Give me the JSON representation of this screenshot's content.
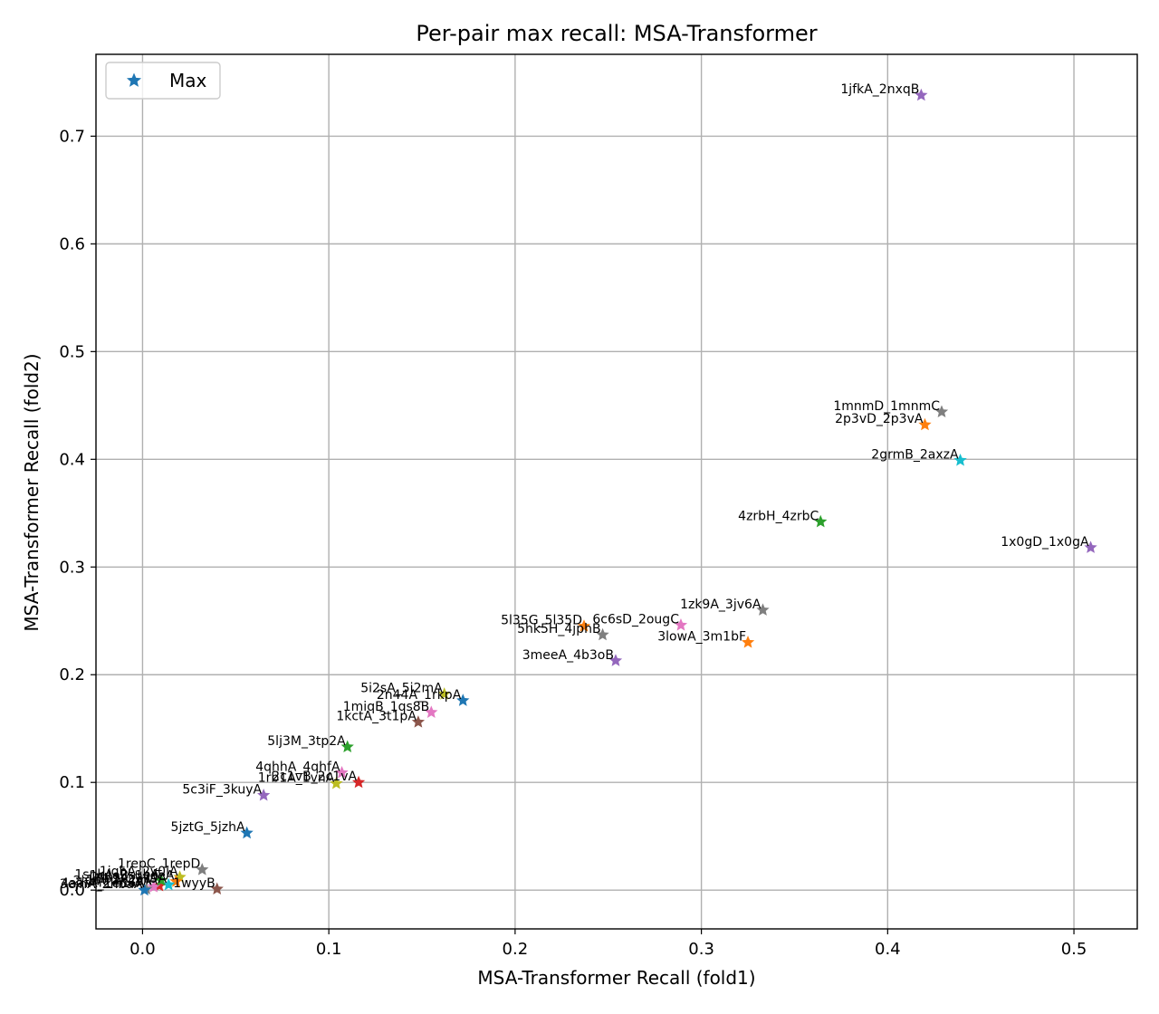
{
  "chart_data": {
    "type": "scatter",
    "title": "Per-pair max recall: MSA-Transformer",
    "xlabel": "MSA-Transformer Recall (fold1)",
    "ylabel": "MSA-Transformer Recall (fold2)",
    "xlim": [
      -0.025,
      0.534
    ],
    "ylim": [
      -0.036,
      0.776
    ],
    "xticks": [
      0.0,
      0.1,
      0.2,
      0.3,
      0.4,
      0.5
    ],
    "yticks": [
      0.0,
      0.1,
      0.2,
      0.3,
      0.4,
      0.5,
      0.6,
      0.7
    ],
    "grid": true,
    "legend": {
      "placement": "top-left",
      "entries": [
        {
          "label": "Max",
          "marker": "star",
          "color": "#1f77b4"
        }
      ]
    },
    "marker": "star",
    "points": [
      {
        "label": "1jfkA_2nxqB",
        "x": 0.418,
        "y": 0.738,
        "color": "#9467bd"
      },
      {
        "label": "1mnmD_1mnmC",
        "x": 0.429,
        "y": 0.444,
        "color": "#7f7f7f"
      },
      {
        "label": "2p3vD_2p3vA",
        "x": 0.42,
        "y": 0.432,
        "color": "#ff7f0e"
      },
      {
        "label": "2grmB_2axzA",
        "x": 0.439,
        "y": 0.399,
        "color": "#17becf"
      },
      {
        "label": "4zrbH_4zrbC",
        "x": 0.364,
        "y": 0.342,
        "color": "#2ca02c"
      },
      {
        "label": "1x0gD_1x0gA",
        "x": 0.509,
        "y": 0.318,
        "color": "#9467bd"
      },
      {
        "label": "1zk9A_3jv6A",
        "x": 0.333,
        "y": 0.26,
        "color": "#7f7f7f"
      },
      {
        "label": "5l35G_5l35D",
        "x": 0.237,
        "y": 0.245,
        "color": "#ff7f0e"
      },
      {
        "label": "6c6sD_2ougC",
        "x": 0.289,
        "y": 0.246,
        "color": "#e377c2"
      },
      {
        "label": "5hk5H_4jphB",
        "x": 0.247,
        "y": 0.237,
        "color": "#7f7f7f"
      },
      {
        "label": "3lowA_3m1bF",
        "x": 0.325,
        "y": 0.23,
        "color": "#ff7f0e"
      },
      {
        "label": "3meeA_4b3oB",
        "x": 0.254,
        "y": 0.213,
        "color": "#9467bd"
      },
      {
        "label": "5i2sA_5i2mA",
        "x": 0.162,
        "y": 0.182,
        "color": "#bcbd22"
      },
      {
        "label": "2n44A_1rkpA",
        "x": 0.172,
        "y": 0.176,
        "color": "#1f77b4"
      },
      {
        "label": "1miqB_1qs8B",
        "x": 0.155,
        "y": 0.165,
        "color": "#e377c2"
      },
      {
        "label": "1kctA_3t1pA",
        "x": 0.148,
        "y": 0.156,
        "color": "#8c564b"
      },
      {
        "label": "5lj3M_3tp2A",
        "x": 0.11,
        "y": 0.133,
        "color": "#2ca02c"
      },
      {
        "label": "4qhhA_4qhfA",
        "x": 0.107,
        "y": 0.109,
        "color": "#e377c2"
      },
      {
        "label": "2c1vB_2c1vA",
        "x": 0.116,
        "y": 0.1,
        "color": "#d62728"
      },
      {
        "label": "1rb1A_1vnA",
        "x": 0.104,
        "y": 0.099,
        "color": "#bcbd22"
      },
      {
        "label": "5c3iF_3kuyA",
        "x": 0.065,
        "y": 0.088,
        "color": "#9467bd"
      },
      {
        "label": "5jztG_5jzhA",
        "x": 0.056,
        "y": 0.053,
        "color": "#1f77b4"
      },
      {
        "label": "1repC_1repD",
        "x": 0.032,
        "y": 0.019,
        "color": "#7f7f7f"
      },
      {
        "label": "1wyyB",
        "x": 0.04,
        "y": 0.001,
        "color": "#8c564b"
      },
      {
        "label": "1iqhA_2v0iA",
        "x": 0.02,
        "y": 0.012,
        "color": "#bcbd22"
      },
      {
        "label": "1ceeB_1ceeA",
        "x": 0.018,
        "y": 0.008,
        "color": "#ff7f0e"
      },
      {
        "label": "4lb1A_3ll9A",
        "x": 0.014,
        "y": 0.005,
        "color": "#17becf"
      },
      {
        "label": "1qlnA_2jrlA",
        "x": 0.009,
        "y": 0.004,
        "color": "#d62728"
      },
      {
        "label": "2lvrA_2k4vA",
        "x": 0.006,
        "y": 0.003,
        "color": "#e377c2"
      },
      {
        "label": "4aafA_1ed6A",
        "x": 0.002,
        "y": 0.001,
        "color": "#7f7f7f"
      },
      {
        "label": "1snkA_2kubA",
        "x": 0.01,
        "y": 0.009,
        "color": "#2ca02c"
      },
      {
        "label": "3ejhA_2hbaA",
        "x": 0.001,
        "y": 0.0,
        "color": "#1f77b4"
      }
    ]
  }
}
